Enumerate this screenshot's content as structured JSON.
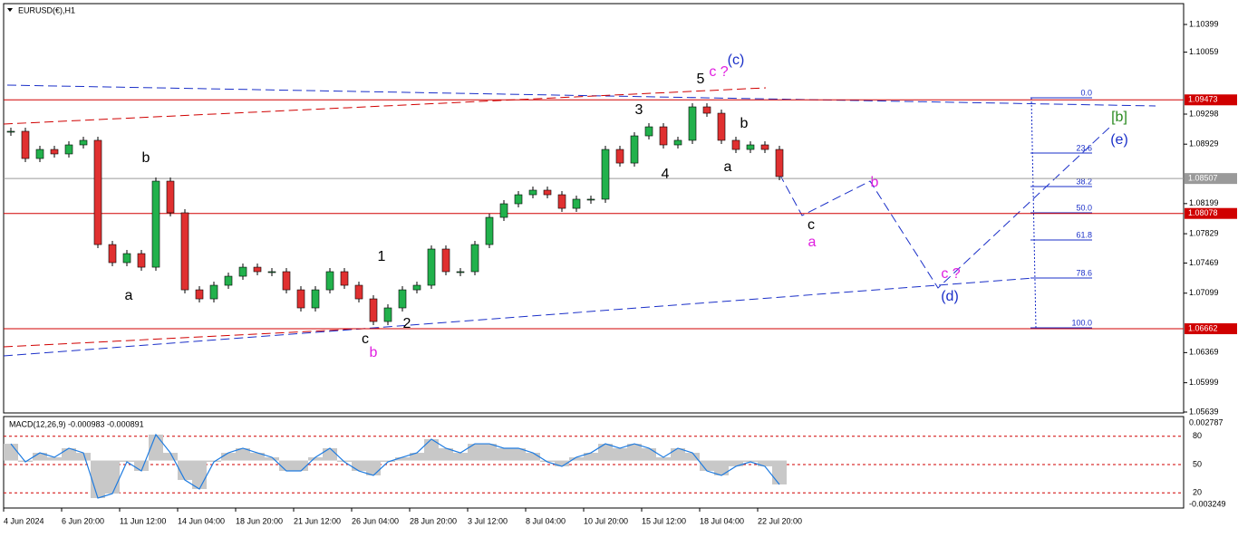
{
  "chart_data": {
    "type": "candlestick",
    "title": "EURUSD(€),H1",
    "categories": [
      "4 Jun 2024",
      null,
      null,
      null,
      "6 Jun 20:00",
      null,
      null,
      null,
      "11 Jun 12:00",
      null,
      null,
      null,
      "14 Jun 04:00",
      null,
      null,
      null,
      "18 Jun 20:00",
      null,
      null,
      null,
      "21 Jun 12:00",
      null,
      null,
      null,
      "26 Jun 04:00",
      null,
      null,
      null,
      "28 Jun 20:00",
      null,
      null,
      null,
      "3 Jul 12:00",
      null,
      null,
      null,
      "8 Jul 04:00",
      null,
      null,
      null,
      "10 Jul 20:00",
      null,
      null,
      null,
      "15 Jul 12:00",
      null,
      null,
      null,
      "18 Jul 04:00",
      null,
      null,
      null,
      "22 Jul 20:00",
      null
    ],
    "series": [
      {
        "name": "EURUSD",
        "up_color": "#22b14c",
        "down_color": "#e03030",
        "values": [
          1.09087,
          1.08753,
          1.08864,
          1.08809,
          1.0892,
          1.08976,
          1.07696,
          1.07474,
          1.07585,
          1.07418,
          1.08475,
          1.08086,
          1.0714,
          1.07029,
          1.07196,
          1.07307,
          1.07418,
          1.07363,
          1.07363,
          1.0714,
          1.06918,
          1.0714,
          1.07363,
          1.07196,
          1.07029,
          1.06751,
          1.06918,
          1.0714,
          1.07196,
          1.07641,
          1.07363,
          1.07363,
          1.07696,
          1.0803,
          1.08197,
          1.08308,
          1.08364,
          1.08308,
          1.08141,
          1.08253,
          1.08253,
          1.08864,
          1.08697,
          1.09031,
          1.09142,
          1.0892,
          1.08976,
          1.09387,
          1.09309,
          1.08976,
          1.08864,
          1.0892,
          1.08864,
          1.08531
        ]
      }
    ],
    "ylim": [
      1.05628,
      1.10655
    ],
    "yticks": [
      1.10399,
      1.10059,
      1.09298,
      1.08929,
      1.08199,
      1.07829,
      1.07469,
      1.07099,
      1.06369,
      1.05999,
      1.05639
    ],
    "price_lines": [
      {
        "value": 1.09473,
        "color": "#d00000"
      },
      {
        "value": 1.08507,
        "color": "#9a9a9a"
      },
      {
        "value": 1.08078,
        "color": "#d00000"
      },
      {
        "value": 1.06662,
        "color": "#d00000"
      }
    ],
    "annotations": [
      "b",
      "a",
      "c",
      "b",
      "1",
      "2",
      "3",
      "4",
      "5",
      "c ?",
      "(c)",
      "b",
      "a",
      "c",
      "a",
      "b",
      "c ?",
      "(d)",
      "[b]",
      "(e)"
    ],
    "fib_levels": [
      "0.0",
      "23.6",
      "38.2",
      "50.0",
      "61.8",
      "78.6",
      "100.0"
    ],
    "macd": {
      "title": "MACD(12,26,9) -0.000983 -0.000891",
      "color": "#1e7be0",
      "values": [
        0.00124,
        -0.0001,
        0.00057,
        0.00024,
        0.00091,
        0.00057,
        -0.00278,
        -0.00245,
        -0.0001,
        -0.00077,
        0.00192,
        0.00057,
        -0.00144,
        -0.00211,
        -0.0001,
        0.00057,
        0.00091,
        0.00057,
        0.00024,
        -0.00077,
        -0.00077,
        0.00024,
        0.00091,
        -0.0001,
        -0.00077,
        -0.0011,
        -0.0001,
        0.00024,
        0.00057,
        0.00158,
        0.00091,
        0.00057,
        0.00124,
        0.00124,
        0.00091,
        0.00091,
        0.00057,
        -0.0001,
        -0.00043,
        0.00024,
        0.00057,
        0.00124,
        0.00091,
        0.00124,
        0.00091,
        0.00024,
        0.00091,
        0.00057,
        -0.00077,
        -0.0011,
        -0.00043,
        -0.0001,
        -0.00043,
        -0.00177
      ],
      "ylim": [
        -0.003249,
        0.002787
      ],
      "yticks": [
        0.002787,
        -0.003249
      ],
      "level_lim": [
        0,
        100
      ],
      "levels": [
        80,
        50,
        20
      ]
    }
  }
}
